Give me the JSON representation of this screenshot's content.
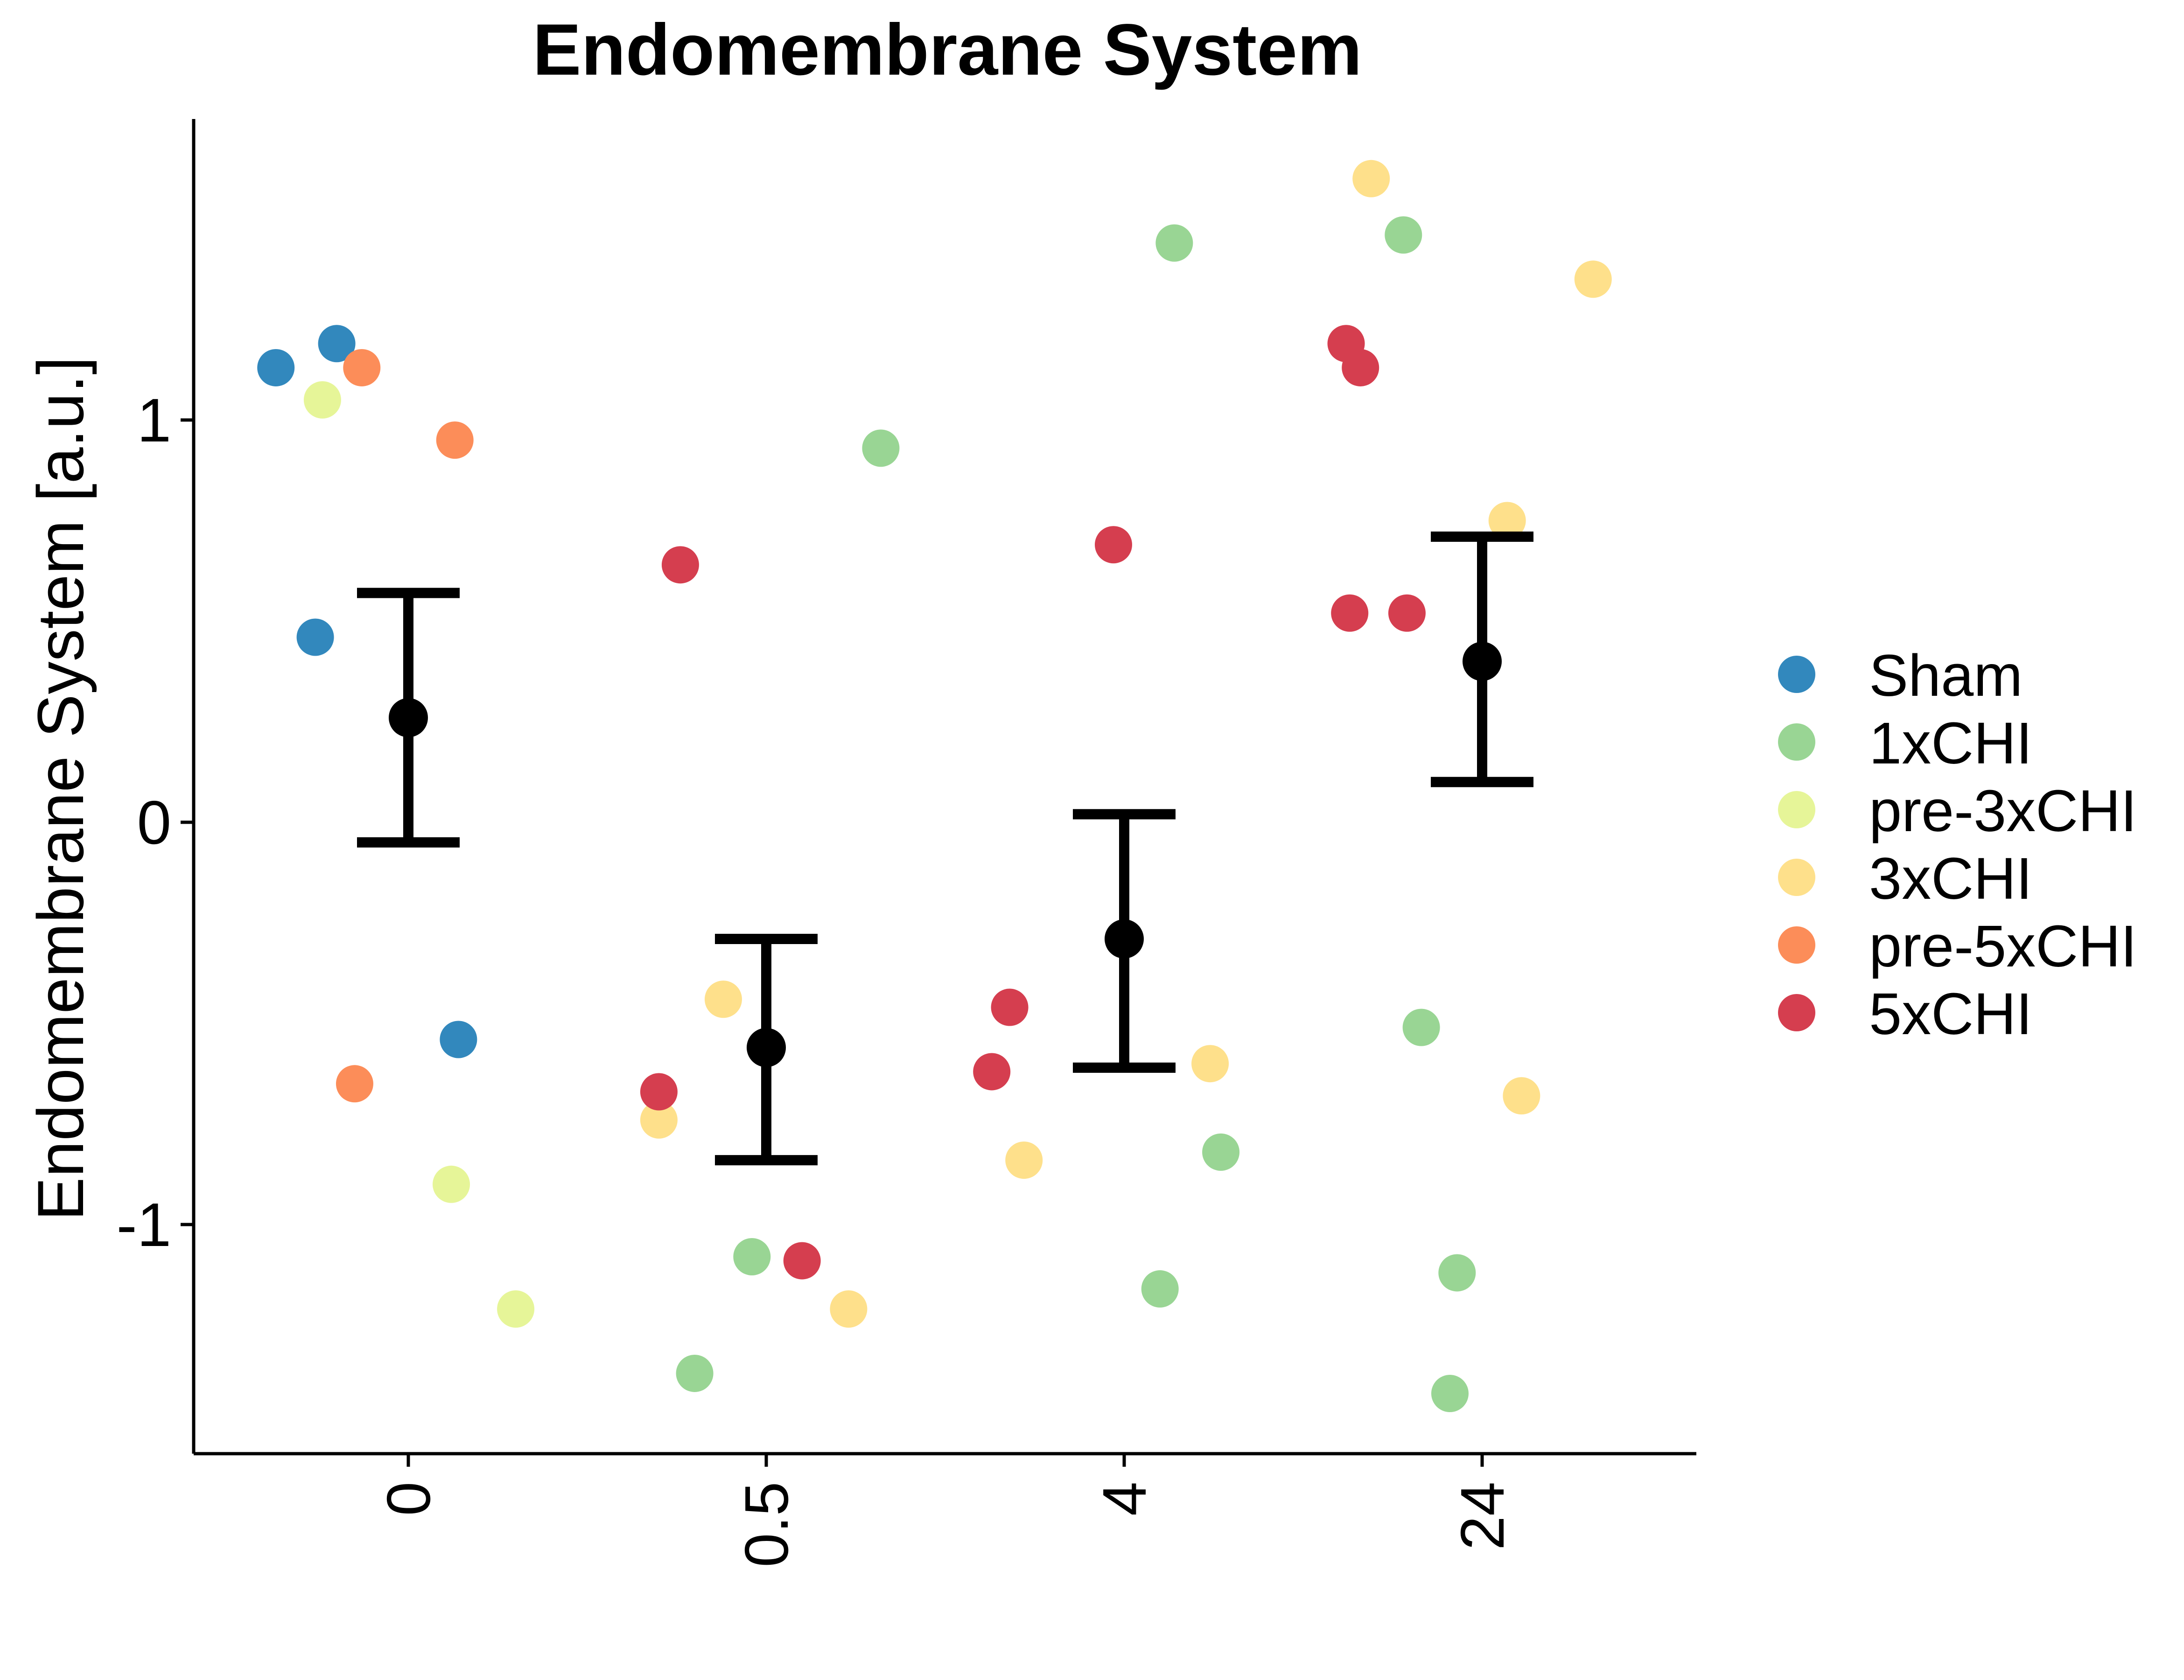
{
  "chart_data": {
    "type": "scatter",
    "title": "Endomembrane System",
    "xlabel": "",
    "ylabel": "Endomembrane System [a.u.]",
    "categories": [
      "0",
      "0.5",
      "4",
      "24"
    ],
    "y_ticks": [
      -1,
      0,
      1
    ],
    "y_tick_labels": [
      "-1",
      "0",
      "1"
    ],
    "ylim": [
      -1.57,
      1.75
    ],
    "grid": false,
    "legend_position": "right",
    "series": [
      {
        "name": "Sham",
        "color": "#3288BD",
        "points": [
          {
            "x": "0",
            "offset": -0.37,
            "y": 1.13
          },
          {
            "x": "0",
            "offset": -0.2,
            "y": 1.19
          },
          {
            "x": "0",
            "offset": -0.26,
            "y": 0.46
          },
          {
            "x": "0",
            "offset": 0.14,
            "y": -0.54
          }
        ]
      },
      {
        "name": "1xCHI",
        "color": "#99D594",
        "points": [
          {
            "x": "0.5",
            "offset": 0.32,
            "y": 0.93
          },
          {
            "x": "0.5",
            "offset": -0.04,
            "y": -1.08
          },
          {
            "x": "0.5",
            "offset": -0.2,
            "y": -1.37
          },
          {
            "x": "4",
            "offset": 0.14,
            "y": 1.44
          },
          {
            "x": "4",
            "offset": 0.27,
            "y": -0.82
          },
          {
            "x": "4",
            "offset": 0.1,
            "y": -1.16
          },
          {
            "x": "24",
            "offset": -0.22,
            "y": 1.46
          },
          {
            "x": "24",
            "offset": -0.17,
            "y": -0.51
          },
          {
            "x": "24",
            "offset": -0.07,
            "y": -1.12
          },
          {
            "x": "24",
            "offset": -0.09,
            "y": -1.42
          }
        ]
      },
      {
        "name": "pre-3xCHI",
        "color": "#E6F598",
        "points": [
          {
            "x": "0",
            "offset": -0.24,
            "y": 1.05
          },
          {
            "x": "0",
            "offset": 0.12,
            "y": -0.9
          },
          {
            "x": "0",
            "offset": 0.3,
            "y": -1.21
          }
        ]
      },
      {
        "name": "3xCHI",
        "color": "#FEE08B",
        "points": [
          {
            "x": "0.5",
            "offset": -0.12,
            "y": -0.44
          },
          {
            "x": "0.5",
            "offset": -0.3,
            "y": -0.74
          },
          {
            "x": "0.5",
            "offset": 0.23,
            "y": -1.21
          },
          {
            "x": "4",
            "offset": -0.28,
            "y": -0.84
          },
          {
            "x": "4",
            "offset": 0.24,
            "y": -0.6
          },
          {
            "x": "24",
            "offset": -0.31,
            "y": 1.6
          },
          {
            "x": "24",
            "offset": 0.31,
            "y": 1.35
          },
          {
            "x": "24",
            "offset": 0.07,
            "y": 0.75
          },
          {
            "x": "24",
            "offset": 0.11,
            "y": -0.68
          }
        ]
      },
      {
        "name": "pre-5xCHI",
        "color": "#FC8D59",
        "points": [
          {
            "x": "0",
            "offset": -0.13,
            "y": 1.13
          },
          {
            "x": "0",
            "offset": 0.13,
            "y": 0.95
          },
          {
            "x": "0",
            "offset": -0.15,
            "y": -0.65
          }
        ]
      },
      {
        "name": "5xCHI",
        "color": "#D53E4F",
        "points": [
          {
            "x": "0.5",
            "offset": -0.24,
            "y": 0.64
          },
          {
            "x": "0.5",
            "offset": -0.3,
            "y": -0.67
          },
          {
            "x": "0.5",
            "offset": 0.1,
            "y": -1.09
          },
          {
            "x": "4",
            "offset": -0.32,
            "y": -0.46
          },
          {
            "x": "4",
            "offset": -0.37,
            "y": -0.62
          },
          {
            "x": "4",
            "offset": -0.03,
            "y": 0.69
          },
          {
            "x": "24",
            "offset": -0.38,
            "y": 1.19
          },
          {
            "x": "24",
            "offset": -0.34,
            "y": 1.13
          },
          {
            "x": "24",
            "offset": -0.37,
            "y": 0.52
          },
          {
            "x": "24",
            "offset": -0.21,
            "y": 0.52
          }
        ]
      }
    ],
    "summary": {
      "color": "#000000",
      "points": [
        {
          "x": "0",
          "mean": 0.26,
          "lower": -0.05,
          "upper": 0.57
        },
        {
          "x": "0.5",
          "mean": -0.56,
          "lower": -0.84,
          "upper": -0.29
        },
        {
          "x": "4",
          "mean": -0.29,
          "lower": -0.61,
          "upper": 0.02
        },
        {
          "x": "24",
          "mean": 0.4,
          "lower": 0.1,
          "upper": 0.71
        }
      ]
    }
  }
}
